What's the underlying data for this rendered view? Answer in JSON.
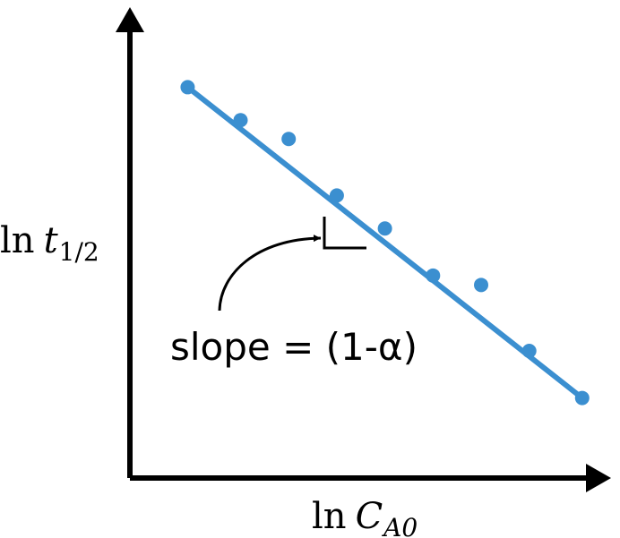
{
  "chart_data": {
    "type": "scatter",
    "xlabel": "ln C_A0",
    "ylabel": "ln t_1/2",
    "axis_labels": {
      "x": {
        "prefix": "ln",
        "main": "C",
        "subscript": "A0"
      },
      "y": {
        "prefix": "ln",
        "main": "t",
        "subscript": "1/2"
      }
    },
    "xlim": [
      0,
      10
    ],
    "ylim": [
      0,
      10
    ],
    "ticks": "none",
    "grid": false,
    "legend": "none",
    "series": [
      {
        "x": [
          1.2,
          2.3,
          3.3,
          4.3,
          5.3,
          6.3,
          7.3,
          8.3,
          9.4
        ],
        "y": [
          8.3,
          7.6,
          7.2,
          6.0,
          5.3,
          4.3,
          4.1,
          2.7,
          1.7
        ],
        "color": "#3b8fd0"
      }
    ],
    "fit_line": {
      "from": [
        1.2,
        8.3
      ],
      "to": [
        9.4,
        1.7
      ],
      "color": "#3b8fd0"
    },
    "annotations": [
      {
        "text": "slope = (1-α)",
        "points_to": "slope-triangle"
      }
    ],
    "colors": {
      "axis": "#000000",
      "marker": "#3b8fd0",
      "line": "#3b8fd0"
    }
  }
}
